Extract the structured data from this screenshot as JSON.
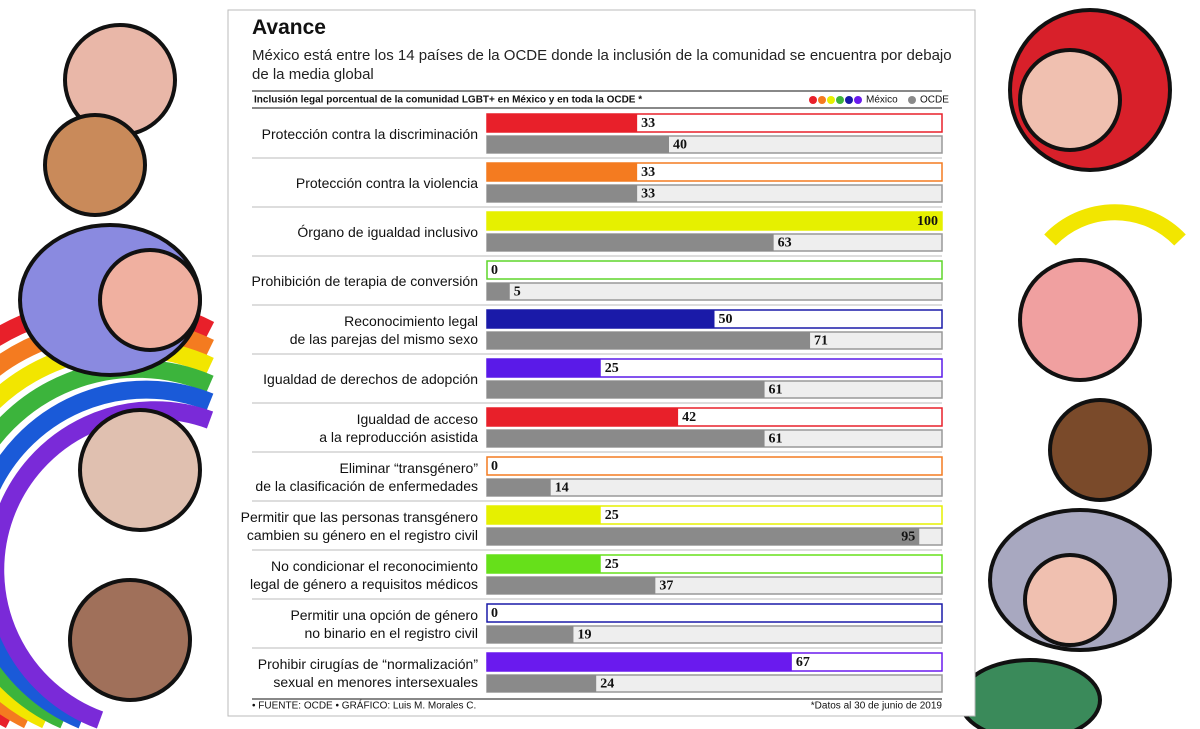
{
  "chart_data": {
    "type": "bar",
    "title": "Avance",
    "subtitle": "México está entre los 14 países de la OCDE donde la inclusión de la comunidad se encuentra por debajo\nde la media global",
    "chart_label": "Inclusión legal porcentual de la comunidad LGBT+ en México y en toda la OCDE *",
    "categories": [
      "Protección contra la discriminación",
      "Protección contra la violencia",
      "Órgano de igualdad inclusivo",
      "Prohibición de terapia de conversión",
      "Reconocimiento legal\nde las parejas del mismo sexo",
      "Igualdad de derechos de adopción",
      "Igualdad de acceso\na la reproducción asistida",
      "Eliminar “transgénero”\nde la clasificación de enfermedades",
      "Permitir que las personas transgénero\ncambien su género en el registro civil",
      "No condicionar el reconocimiento\nlegal de género a requisitos médicos",
      "Permitir una opción de género\nno binario en el registro civil",
      "Prohibir cirugías de “normalización”\nsexual en menores intersexuales"
    ],
    "series": [
      {
        "name": "México",
        "colors": [
          "#e8202a",
          "#f47b20",
          "#e6f000",
          "#5fd62a",
          "#1a1aa8",
          "#5a1ae8",
          "#e8202a",
          "#f47b20",
          "#e6f000",
          "#66e01a",
          "#1a1aa8",
          "#6a1aee"
        ],
        "values": [
          33,
          33,
          100,
          0,
          50,
          25,
          42,
          0,
          25,
          25,
          0,
          67
        ]
      },
      {
        "name": "OCDE",
        "color": "#8a8a8a",
        "values": [
          40,
          33,
          63,
          5,
          71,
          61,
          61,
          14,
          95,
          37,
          19,
          24
        ]
      }
    ],
    "xlim": [
      0,
      100
    ],
    "source": "• FUENTE: OCDE • GRÁFICO: Luis M. Morales C.",
    "note": "*Datos al 30 de junio de 2019"
  }
}
